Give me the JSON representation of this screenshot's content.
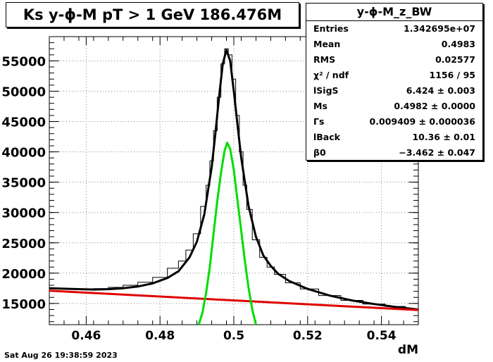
{
  "title": "Ks y-ϕ-M pT > 1 GeV  186.476M",
  "stats": {
    "name": "y-ϕ-M_z_BW",
    "rows": [
      {
        "key": "Entries",
        "value": "1.342695e+07"
      },
      {
        "key": "Mean",
        "value": "0.4983"
      },
      {
        "key": "RMS",
        "value": "0.02577"
      },
      {
        "key": "χ² / ndf",
        "value": "1156 / 95"
      },
      {
        "key": "lSigS",
        "value": "6.424 ± 0.003"
      },
      {
        "key": "Ms",
        "value": "0.4982 ± 0.0000"
      },
      {
        "key": "Γs",
        "value": "0.009409 ± 0.000036"
      },
      {
        "key": "lBack",
        "value": "10.36 ± 0.01"
      },
      {
        "key": "β0",
        "value": "−3.462 ± 0.047"
      }
    ]
  },
  "footer": "Sat Aug 26 19:38:59 2023",
  "chart_data": {
    "type": "line",
    "title": "Ks y-ϕ-M pT > 1 GeV  186.476M",
    "xlabel": "dM",
    "ylabel": "",
    "xlim": [
      0.45,
      0.55
    ],
    "ylim": [
      11500,
      59000
    ],
    "grid": true,
    "x_ticks": [
      0.46,
      0.48,
      0.5,
      0.52,
      0.54
    ],
    "x_tick_labels": [
      "0.46",
      "0.48",
      "0.5",
      "0.52",
      "0.54"
    ],
    "y_ticks": [
      15000,
      20000,
      25000,
      30000,
      35000,
      40000,
      45000,
      50000,
      55000
    ],
    "y_tick_labels": [
      "15000",
      "20000",
      "25000",
      "30000",
      "35000",
      "40000",
      "45000",
      "50000",
      "55000"
    ],
    "series": [
      {
        "role": "histogram",
        "color": "#000000",
        "x": [
          0.452,
          0.456,
          0.46,
          0.464,
          0.468,
          0.472,
          0.476,
          0.48,
          0.484,
          0.486,
          0.488,
          0.49,
          0.492,
          0.493,
          0.494,
          0.495,
          0.496,
          0.497,
          0.498,
          0.499,
          0.5,
          0.501,
          0.502,
          0.503,
          0.504,
          0.506,
          0.508,
          0.51,
          0.512,
          0.516,
          0.52,
          0.526,
          0.532,
          0.538,
          0.544,
          0.549
        ],
        "y": [
          17500,
          17400,
          17350,
          17450,
          17650,
          18000,
          18500,
          19300,
          20800,
          22000,
          23800,
          26500,
          31000,
          34500,
          38500,
          43500,
          49000,
          54500,
          57000,
          56000,
          52000,
          46000,
          40000,
          34500,
          30500,
          25500,
          22600,
          21000,
          19800,
          18400,
          17400,
          16300,
          15500,
          14900,
          14500,
          14100
        ]
      },
      {
        "role": "total-fit",
        "color": "#000000",
        "x": [
          0.45,
          0.456,
          0.462,
          0.466,
          0.47,
          0.474,
          0.478,
          0.482,
          0.485,
          0.488,
          0.49,
          0.492,
          0.494,
          0.495,
          0.496,
          0.497,
          0.498,
          0.499,
          0.5,
          0.501,
          0.502,
          0.504,
          0.506,
          0.508,
          0.51,
          0.512,
          0.515,
          0.52,
          0.526,
          0.532,
          0.538,
          0.544,
          0.55
        ],
        "y": [
          17500,
          17400,
          17300,
          17350,
          17500,
          17800,
          18300,
          19200,
          20300,
          22600,
          25200,
          29700,
          37500,
          43000,
          49000,
          54500,
          56800,
          55000,
          50000,
          44500,
          39000,
          31000,
          26000,
          22900,
          21200,
          19900,
          18700,
          17400,
          16300,
          15500,
          14900,
          14400,
          14000
        ]
      },
      {
        "role": "background",
        "color": "#e00000",
        "x": [
          0.45,
          0.55
        ],
        "y": [
          17100,
          13900
        ]
      },
      {
        "role": "signal",
        "color": "#00dd00",
        "x": [
          0.4905,
          0.4915,
          0.4925,
          0.4935,
          0.4945,
          0.4955,
          0.4965,
          0.4975,
          0.4982,
          0.499,
          0.5,
          0.501,
          0.502,
          0.503,
          0.504,
          0.505,
          0.506
        ],
        "y": [
          11500,
          13500,
          16800,
          21000,
          26500,
          31800,
          36500,
          40200,
          41500,
          40500,
          37000,
          32000,
          27000,
          22000,
          17500,
          14000,
          11500
        ]
      }
    ]
  }
}
